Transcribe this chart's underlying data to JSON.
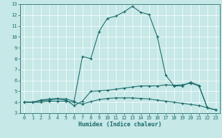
{
  "xlabel": "Humidex (Indice chaleur)",
  "background_color": "#c6e8e6",
  "line_color": "#1a6b6b",
  "xlim": [
    -0.5,
    23.5
  ],
  "ylim": [
    3,
    13
  ],
  "xticks": [
    0,
    1,
    2,
    3,
    4,
    5,
    6,
    7,
    8,
    9,
    10,
    11,
    12,
    13,
    14,
    15,
    16,
    17,
    18,
    19,
    20,
    21,
    22,
    23
  ],
  "yticks": [
    3,
    4,
    5,
    6,
    7,
    8,
    9,
    10,
    11,
    12,
    13
  ],
  "line1_x": [
    0,
    1,
    2,
    3,
    4,
    5,
    6,
    7,
    8,
    9,
    10,
    11,
    12,
    13,
    14,
    15,
    16,
    17,
    18,
    19,
    20,
    21,
    22,
    23
  ],
  "line1_y": [
    4.0,
    4.0,
    4.2,
    4.3,
    4.35,
    4.3,
    4.1,
    8.2,
    8.0,
    10.5,
    11.7,
    11.9,
    12.3,
    12.8,
    12.25,
    12.05,
    10.0,
    6.5,
    5.5,
    5.5,
    5.85,
    5.55,
    3.5,
    3.3
  ],
  "line2_x": [
    0,
    1,
    2,
    3,
    4,
    5,
    6,
    7,
    8,
    9,
    10,
    11,
    12,
    13,
    14,
    15,
    16,
    17,
    18,
    19,
    20,
    21,
    22,
    23
  ],
  "line2_y": [
    4.0,
    4.0,
    4.15,
    4.2,
    4.3,
    4.2,
    3.7,
    4.1,
    5.0,
    5.05,
    5.1,
    5.2,
    5.3,
    5.4,
    5.5,
    5.5,
    5.5,
    5.6,
    5.55,
    5.6,
    5.75,
    5.5,
    3.5,
    3.3
  ],
  "line3_x": [
    0,
    1,
    2,
    3,
    4,
    5,
    6,
    7,
    8,
    9,
    10,
    11,
    12,
    13,
    14,
    15,
    16,
    17,
    18,
    19,
    20,
    21,
    22,
    23
  ],
  "line3_y": [
    4.0,
    4.0,
    4.0,
    4.1,
    4.1,
    4.1,
    4.0,
    3.85,
    4.05,
    4.25,
    4.35,
    4.4,
    4.4,
    4.4,
    4.35,
    4.3,
    4.2,
    4.1,
    4.0,
    3.9,
    3.8,
    3.7,
    3.5,
    3.3
  ]
}
